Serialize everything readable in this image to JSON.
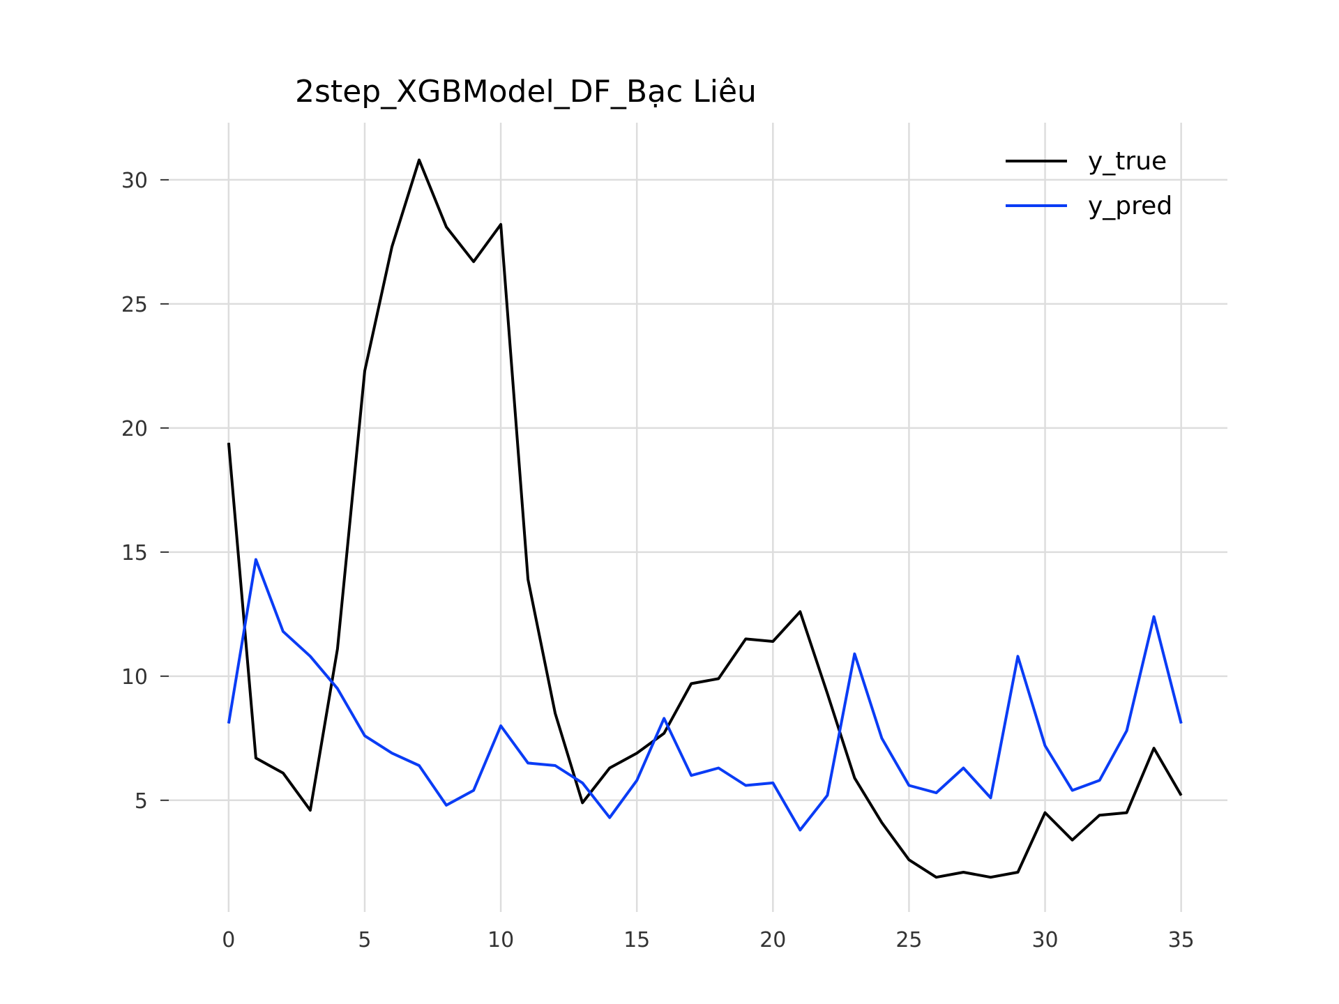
{
  "chart_data": {
    "type": "line",
    "title": "2step_XGBModel_DF_Bạc Liêu",
    "xlabel": "",
    "ylabel": "",
    "x": [
      0,
      1,
      2,
      3,
      4,
      5,
      6,
      7,
      8,
      9,
      10,
      11,
      12,
      13,
      14,
      15,
      16,
      17,
      18,
      19,
      20,
      21,
      22,
      23,
      24,
      25,
      26,
      27,
      28,
      29,
      30,
      31,
      32,
      33,
      34,
      35
    ],
    "xticks": [
      0,
      5,
      10,
      15,
      20,
      25,
      30,
      35
    ],
    "yticks": [
      5,
      10,
      15,
      20,
      25,
      30
    ],
    "xlim": [
      -2.2,
      36.7
    ],
    "ylim": [
      0.5,
      32.3
    ],
    "grid": true,
    "legend_position": "top-right",
    "series": [
      {
        "name": "y_true",
        "color": "#000000",
        "values": [
          19.4,
          6.7,
          6.1,
          4.6,
          11.1,
          22.3,
          27.3,
          30.8,
          28.1,
          26.7,
          28.2,
          13.9,
          8.5,
          4.9,
          6.3,
          6.9,
          7.7,
          9.7,
          9.9,
          11.5,
          11.4,
          12.6,
          9.3,
          5.9,
          4.1,
          2.6,
          1.9,
          2.1,
          1.9,
          2.1,
          4.5,
          3.4,
          4.4,
          4.5,
          7.1,
          5.2
        ]
      },
      {
        "name": "y_pred",
        "color": "#0a3cf5",
        "values": [
          8.1,
          14.7,
          11.8,
          10.8,
          9.5,
          7.6,
          6.9,
          6.4,
          4.8,
          5.4,
          8.0,
          6.5,
          6.4,
          5.7,
          4.3,
          5.8,
          8.3,
          6.0,
          6.3,
          5.6,
          5.7,
          3.8,
          5.2,
          10.9,
          7.5,
          5.6,
          5.3,
          6.3,
          5.1,
          10.8,
          7.2,
          5.4,
          5.8,
          7.8,
          12.4,
          8.1
        ]
      }
    ]
  }
}
